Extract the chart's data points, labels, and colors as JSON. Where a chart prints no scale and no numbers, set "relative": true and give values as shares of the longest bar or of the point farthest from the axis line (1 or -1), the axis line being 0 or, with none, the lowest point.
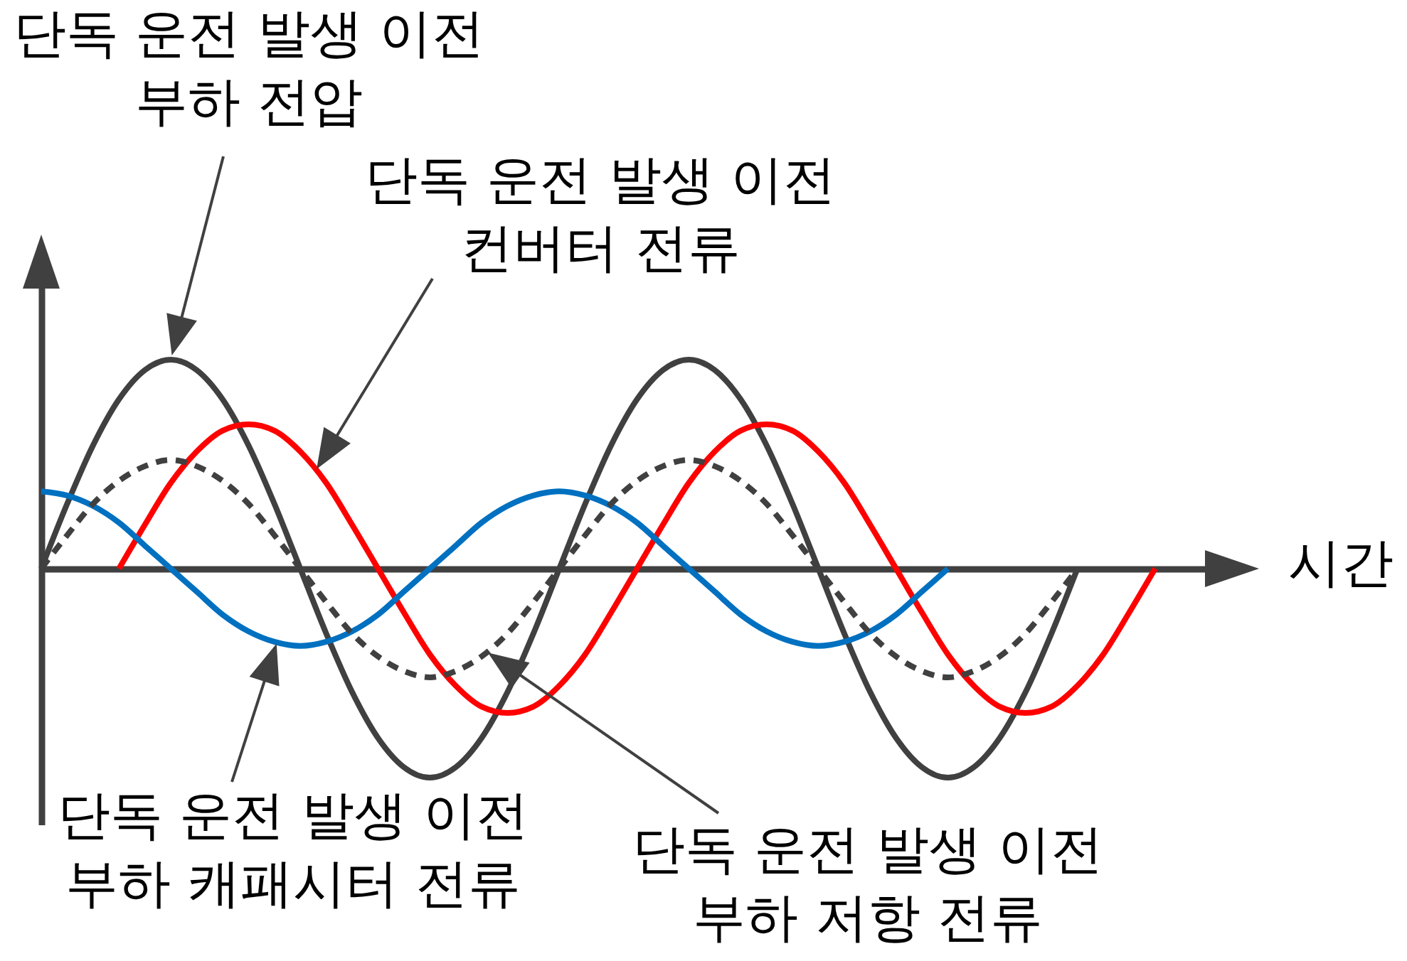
{
  "chart_data": {
    "type": "line",
    "relative": true,
    "xlabel": "시간",
    "categories": [
      null,
      null,
      null,
      null,
      null,
      null,
      null,
      null,
      null,
      null,
      null,
      null,
      null,
      null,
      null,
      null,
      null,
      null,
      null,
      null,
      null,
      null,
      null,
      null,
      null,
      null,
      null,
      null,
      null,
      null,
      null,
      null,
      null,
      null,
      null,
      null,
      null,
      null,
      null,
      null,
      null,
      null,
      null,
      null
    ],
    "series": [
      {
        "color": "#404040",
        "values": [
          0,
          0.31,
          0.59,
          0.81,
          0.95,
          1,
          0.95,
          0.81,
          0.59,
          0.31,
          0,
          -0.31,
          -0.59,
          -0.81,
          -0.95,
          -1,
          -0.95,
          -0.81,
          -0.59,
          -0.31,
          0,
          0.31,
          0.59,
          0.81,
          0.95,
          1,
          0.95,
          0.81,
          0.59,
          0.31,
          0,
          -0.31,
          -0.59,
          -0.81,
          -0.95,
          -1,
          -0.95,
          -0.81,
          -0.59,
          -0.31,
          0,
          null,
          null,
          null
        ]
      },
      {
        "color": "#ff0000",
        "values": [
          null,
          null,
          null,
          0,
          0.21,
          0.41,
          0.56,
          0.66,
          0.69,
          0.66,
          0.56,
          0.41,
          0.21,
          0,
          -0.21,
          -0.41,
          -0.56,
          -0.66,
          -0.69,
          -0.66,
          -0.56,
          -0.41,
          -0.21,
          0,
          0.21,
          0.41,
          0.56,
          0.66,
          0.69,
          0.66,
          0.56,
          0.41,
          0.21,
          0,
          -0.21,
          -0.41,
          -0.56,
          -0.66,
          -0.69,
          -0.66,
          -0.56,
          -0.41,
          -0.21,
          0
        ]
      },
      {
        "color": "#0070c0",
        "values": [
          0.37,
          0.35,
          0.3,
          0.22,
          0.11,
          0,
          -0.11,
          -0.22,
          -0.3,
          -0.35,
          -0.37,
          -0.35,
          -0.3,
          -0.22,
          -0.11,
          0,
          0.11,
          0.22,
          0.3,
          0.35,
          0.37,
          0.35,
          0.3,
          0.22,
          0.11,
          0,
          -0.11,
          -0.22,
          -0.3,
          -0.35,
          -0.37,
          -0.35,
          -0.3,
          -0.22,
          -0.11,
          0,
          null,
          null,
          null,
          null,
          null,
          null,
          null,
          null
        ]
      },
      {
        "color": "#404040",
        "line_style": "dashed",
        "values": [
          0,
          0.16,
          0.31,
          0.42,
          0.49,
          0.52,
          0.49,
          0.42,
          0.31,
          0.16,
          0,
          -0.16,
          -0.31,
          -0.42,
          -0.49,
          -0.52,
          -0.49,
          -0.42,
          -0.31,
          -0.16,
          0,
          0.16,
          0.31,
          0.42,
          0.49,
          0.52,
          0.49,
          0.42,
          0.31,
          0.16,
          0,
          -0.16,
          -0.31,
          -0.42,
          -0.49,
          -0.52,
          -0.49,
          -0.42,
          -0.31,
          -0.16,
          0,
          null,
          null,
          null
        ]
      }
    ],
    "annotations": [
      "단독 운전 발생 이전 부하 전압",
      "단독 운전 발생 이전 컨버터 전류",
      "단독 운전 발생 이전 부하 캐패시터 전류",
      "단독 운전 발생 이전 부하 저항 전류"
    ]
  }
}
